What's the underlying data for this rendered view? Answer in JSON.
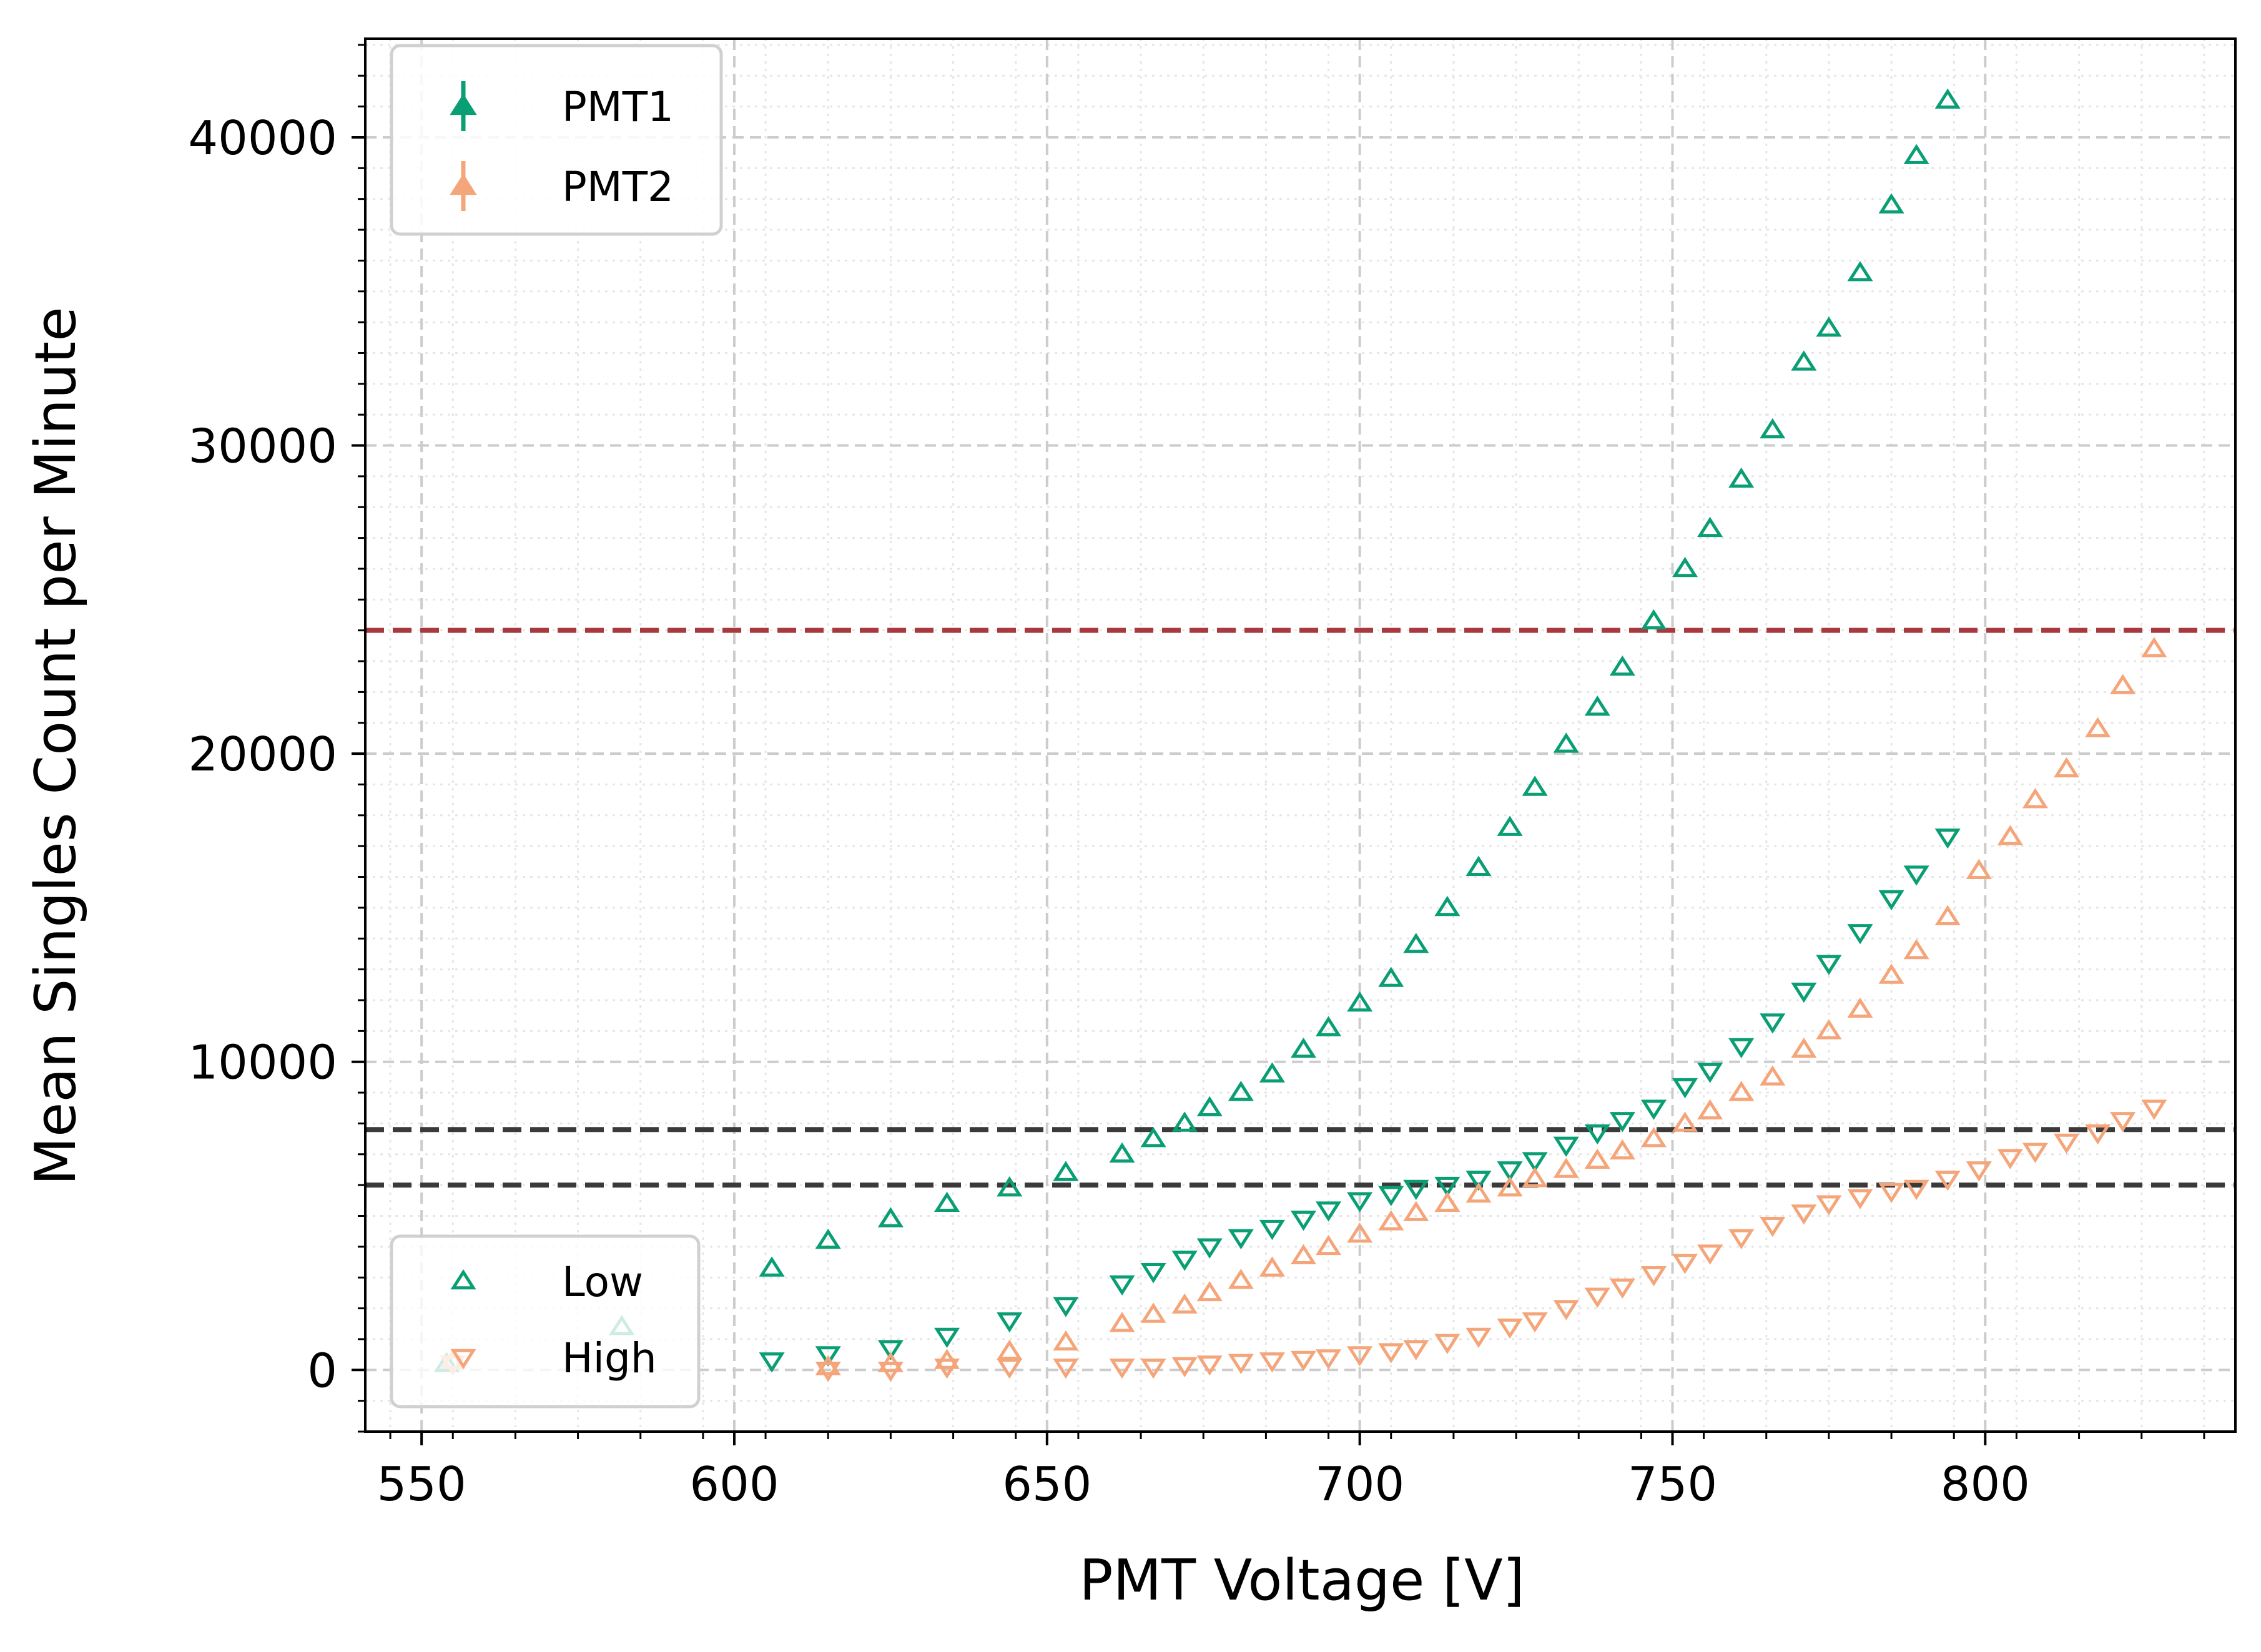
{
  "chart_data": {
    "type": "scatter",
    "xlabel": "PMT Voltage [V]",
    "ylabel": "Mean Singles Count per Minute",
    "xlim": [
      541,
      840
    ],
    "ylim": [
      -2000,
      43200
    ],
    "x_ticks": [
      "550",
      "600",
      "650",
      "700",
      "750",
      "800"
    ],
    "y_ticks": [
      "0",
      "10000",
      "20000",
      "30000",
      "40000"
    ],
    "grid": true,
    "legend_pmt": {
      "placement": "top-left",
      "entries": [
        {
          "label": "PMT1",
          "color": "#0a9e74"
        },
        {
          "label": "PMT2",
          "color": "#f5a57a"
        }
      ]
    },
    "legend_threshold": {
      "placement": "bottom-left",
      "entries": [
        {
          "label": "Low",
          "marker": "triangle-up"
        },
        {
          "label": "High",
          "marker": "triangle-down"
        }
      ]
    },
    "hlines": [
      {
        "y": 24000,
        "color": "#a83a3f"
      },
      {
        "y": 7800,
        "color": "#3a3a3a"
      },
      {
        "y": 6000,
        "color": "#3a3a3a"
      }
    ],
    "series": [
      {
        "pmt": "PMT1",
        "threshold": "Low",
        "color": "#0a9e74",
        "marker": "triangle-up",
        "x": [
          554,
          582,
          606,
          615,
          625,
          634,
          644,
          653,
          662,
          667,
          672,
          676,
          681,
          686,
          691,
          695,
          700,
          705,
          709,
          714,
          719,
          724,
          728,
          733,
          738,
          742,
          747,
          752,
          756,
          761,
          766,
          771,
          775,
          780,
          785,
          789,
          794
        ],
        "y": [
          200,
          1400,
          3300,
          4200,
          4900,
          5400,
          5900,
          6400,
          7000,
          7500,
          8000,
          8500,
          9000,
          9600,
          10400,
          11100,
          11900,
          12700,
          13800,
          15000,
          16300,
          17600,
          18900,
          20300,
          21500,
          22800,
          24300,
          26000,
          27300,
          28900,
          30500,
          32700,
          33800,
          35600,
          37800,
          39400,
          41200
        ]
      },
      {
        "pmt": "PMT1",
        "threshold": "High",
        "color": "#0a9e74",
        "marker": "triangle-down",
        "x": [
          606,
          615,
          625,
          634,
          644,
          653,
          662,
          667,
          672,
          676,
          681,
          686,
          691,
          695,
          700,
          705,
          709,
          714,
          719,
          724,
          728,
          733,
          738,
          742,
          747,
          752,
          756,
          761,
          766,
          771,
          775,
          780,
          785,
          789,
          794
        ],
        "y": [
          300,
          500,
          700,
          1100,
          1600,
          2100,
          2800,
          3200,
          3600,
          4000,
          4300,
          4600,
          4900,
          5200,
          5500,
          5700,
          5900,
          6000,
          6200,
          6500,
          6800,
          7300,
          7700,
          8100,
          8500,
          9200,
          9700,
          10500,
          11300,
          12300,
          13200,
          14200,
          15300,
          16100,
          17300
        ]
      },
      {
        "pmt": "PMT2",
        "threshold": "Low",
        "color": "#f5a57a",
        "marker": "triangle-up",
        "x": [
          555,
          615,
          625,
          634,
          644,
          653,
          662,
          667,
          672,
          676,
          681,
          686,
          691,
          695,
          700,
          705,
          709,
          714,
          719,
          724,
          728,
          733,
          738,
          742,
          747,
          752,
          756,
          761,
          766,
          771,
          775,
          780,
          785,
          789,
          794,
          799,
          804,
          808,
          813,
          818,
          822,
          827
        ],
        "y": [
          300,
          100,
          200,
          300,
          600,
          900,
          1500,
          1800,
          2100,
          2500,
          2900,
          3300,
          3700,
          4000,
          4400,
          4800,
          5100,
          5400,
          5700,
          5900,
          6200,
          6500,
          6800,
          7100,
          7500,
          8000,
          8400,
          9000,
          9500,
          10400,
          11000,
          11700,
          12800,
          13600,
          14700,
          16200,
          17300,
          18500,
          19500,
          20800,
          22200,
          23400
        ]
      },
      {
        "pmt": "PMT2",
        "threshold": "High",
        "color": "#f5a57a",
        "marker": "triangle-down",
        "x": [
          555,
          615,
          625,
          634,
          644,
          653,
          662,
          667,
          672,
          676,
          681,
          686,
          691,
          695,
          700,
          705,
          709,
          714,
          719,
          724,
          728,
          733,
          738,
          742,
          747,
          752,
          756,
          761,
          766,
          771,
          775,
          780,
          785,
          789,
          794,
          799,
          804,
          808,
          813,
          818,
          822,
          827
        ],
        "y": [
          200,
          0,
          0,
          100,
          100,
          100,
          100,
          100,
          150,
          200,
          250,
          300,
          350,
          400,
          500,
          600,
          700,
          900,
          1100,
          1400,
          1600,
          2000,
          2400,
          2700,
          3100,
          3500,
          3800,
          4300,
          4700,
          5100,
          5400,
          5600,
          5800,
          5900,
          6200,
          6500,
          6900,
          7100,
          7400,
          7700,
          8100,
          8500
        ]
      }
    ]
  }
}
